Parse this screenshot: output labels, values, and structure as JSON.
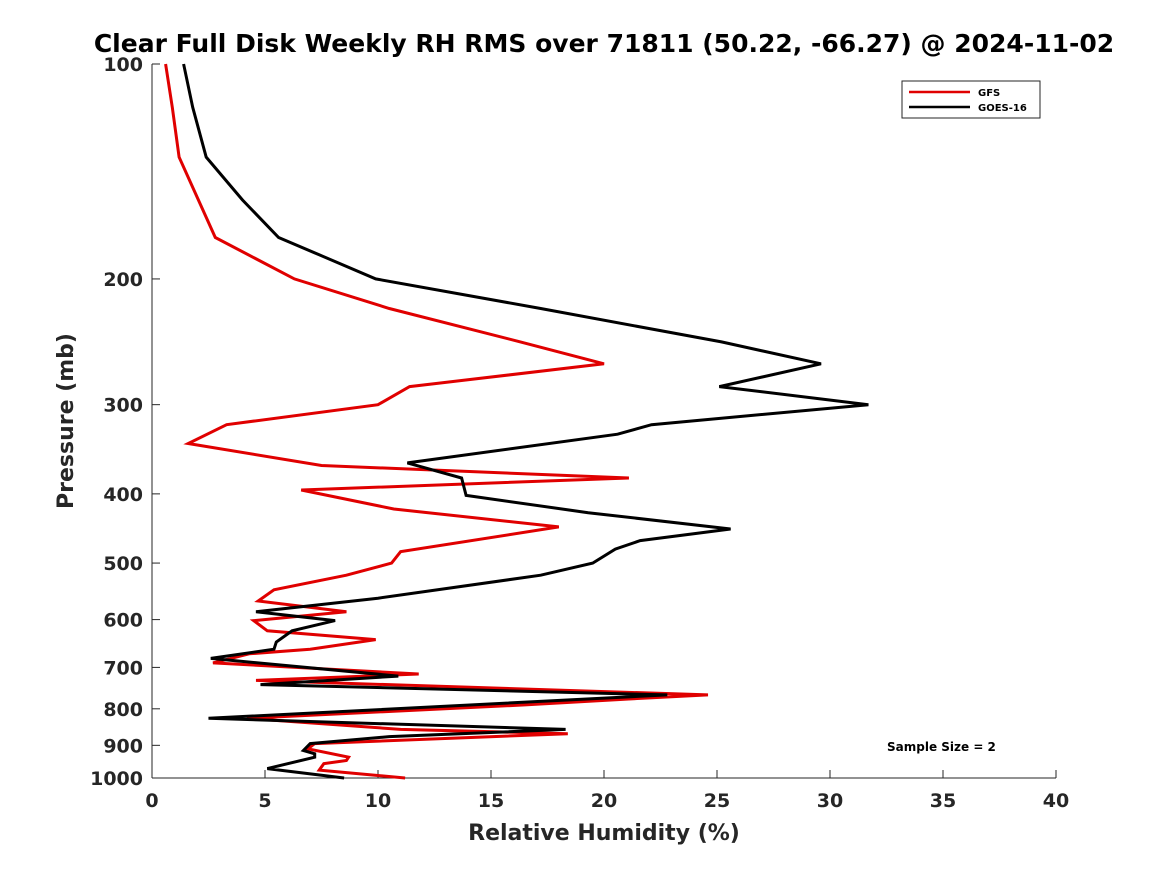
{
  "chart_data": {
    "type": "line",
    "title": "Clear Full Disk Weekly RH RMS over 71811 (50.22, -66.27) @ 2024-11-02",
    "xlabel": "Relative Humidity (%)",
    "ylabel": "Pressure (mb)",
    "xlim": [
      0,
      40
    ],
    "ylim": [
      100,
      1000
    ],
    "yscale": "log",
    "y_reversed": true,
    "x_ticks": [
      "0",
      "5",
      "10",
      "15",
      "20",
      "25",
      "30",
      "35",
      "40"
    ],
    "y_ticks": [
      "100",
      "200",
      "300",
      "400",
      "500",
      "600",
      "700",
      "800",
      "900",
      "1000"
    ],
    "legend_position": "top-right",
    "annotation": "Sample Size = 2",
    "series": [
      {
        "name": "GFS",
        "color": "#e00000",
        "points": [
          [
            0.6,
            100
          ],
          [
            0.9,
            115
          ],
          [
            1.2,
            135
          ],
          [
            2.8,
            175
          ],
          [
            6.3,
            200
          ],
          [
            10.5,
            220
          ],
          [
            16.3,
            245
          ],
          [
            20.0,
            263
          ],
          [
            11.4,
            283
          ],
          [
            10.0,
            300
          ],
          [
            3.3,
            320
          ],
          [
            1.6,
            340
          ],
          [
            7.5,
            365
          ],
          [
            21.1,
            380
          ],
          [
            6.6,
            395
          ],
          [
            10.7,
            420
          ],
          [
            18.0,
            445
          ],
          [
            11.0,
            482
          ],
          [
            10.6,
            500
          ],
          [
            8.6,
            520
          ],
          [
            5.4,
            545
          ],
          [
            4.7,
            565
          ],
          [
            8.6,
            585
          ],
          [
            4.5,
            602
          ],
          [
            5.1,
            622
          ],
          [
            9.9,
            640
          ],
          [
            7.0,
            660
          ],
          [
            4.3,
            670
          ],
          [
            2.7,
            690
          ],
          [
            11.8,
            715
          ],
          [
            4.6,
            730
          ],
          [
            24.6,
            765
          ],
          [
            21.1,
            775
          ],
          [
            16.5,
            790
          ],
          [
            4.2,
            825
          ],
          [
            11.0,
            855
          ],
          [
            18.4,
            867
          ],
          [
            7.2,
            895
          ],
          [
            6.9,
            910
          ],
          [
            8.7,
            935
          ],
          [
            8.6,
            945
          ],
          [
            7.6,
            955
          ],
          [
            7.4,
            975
          ],
          [
            11.2,
            1000
          ]
        ]
      },
      {
        "name": "GOES-16",
        "color": "#000000",
        "points": [
          [
            1.4,
            100
          ],
          [
            1.8,
            115
          ],
          [
            2.4,
            135
          ],
          [
            4.0,
            155
          ],
          [
            5.6,
            175
          ],
          [
            7.4,
            185
          ],
          [
            9.9,
            200
          ],
          [
            17.2,
            220
          ],
          [
            25.2,
            245
          ],
          [
            29.6,
            263
          ],
          [
            25.1,
            283
          ],
          [
            31.7,
            300
          ],
          [
            22.1,
            320
          ],
          [
            20.6,
            330
          ],
          [
            11.3,
            362
          ],
          [
            13.7,
            380
          ],
          [
            13.9,
            402
          ],
          [
            19.3,
            425
          ],
          [
            25.6,
            448
          ],
          [
            21.6,
            465
          ],
          [
            20.5,
            478
          ],
          [
            19.5,
            500
          ],
          [
            17.2,
            520
          ],
          [
            10.0,
            560
          ],
          [
            4.6,
            585
          ],
          [
            8.1,
            602
          ],
          [
            6.2,
            622
          ],
          [
            5.5,
            645
          ],
          [
            5.4,
            660
          ],
          [
            2.6,
            680
          ],
          [
            10.9,
            720
          ],
          [
            4.8,
            740
          ],
          [
            22.8,
            765
          ],
          [
            2.5,
            825
          ],
          [
            18.3,
            855
          ],
          [
            10.5,
            875
          ],
          [
            7.0,
            895
          ],
          [
            6.7,
            915
          ],
          [
            7.2,
            925
          ],
          [
            7.2,
            935
          ],
          [
            5.1,
            970
          ],
          [
            8.5,
            1000
          ]
        ]
      }
    ]
  }
}
